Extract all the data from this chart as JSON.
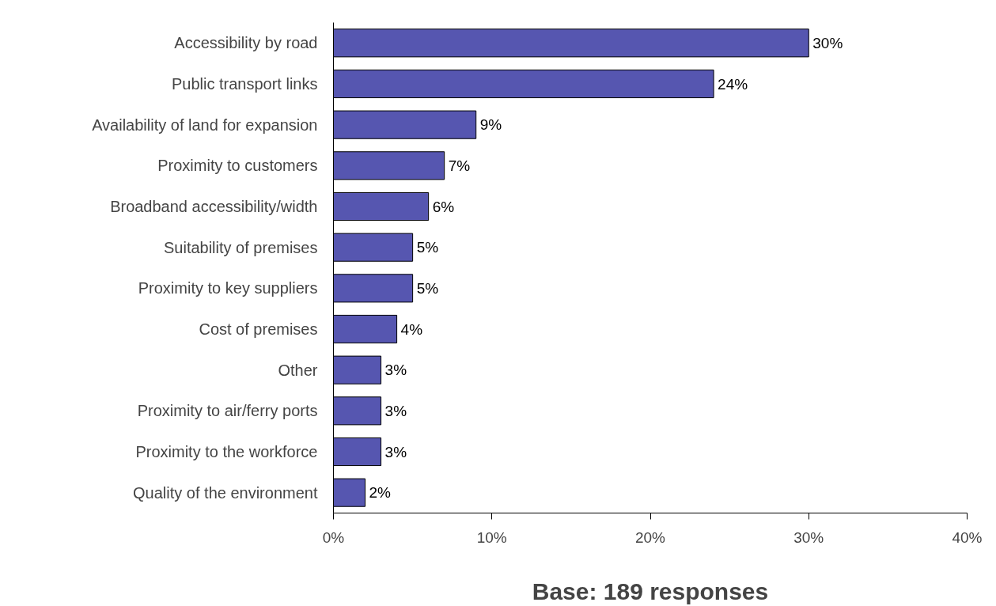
{
  "chart_data": {
    "type": "bar",
    "orientation": "horizontal",
    "xlabel": "Base: 189 responses",
    "categories": [
      "Accessibility by road",
      "Public transport links",
      "Availability of land for expansion",
      "Proximity to customers",
      "Broadband accessibility/width",
      "Suitability of premises",
      "Proximity to key suppliers",
      "Cost of premises",
      "Other",
      "Proximity to air/ferry ports",
      "Proximity to the workforce",
      "Quality of the environment"
    ],
    "values": [
      30,
      24,
      9,
      7,
      6,
      5,
      5,
      4,
      3,
      3,
      3,
      2
    ],
    "value_labels": [
      "30%",
      "24%",
      "9%",
      "7%",
      "6%",
      "5%",
      "5%",
      "4%",
      "3%",
      "3%",
      "3%",
      "2%"
    ],
    "color": "#5656b0",
    "xlim": [
      0,
      40
    ],
    "xticks": [
      {
        "value": 0,
        "label": "0%"
      },
      {
        "value": 10,
        "label": "10%"
      },
      {
        "value": 20,
        "label": "20%"
      },
      {
        "value": 30,
        "label": "30%"
      },
      {
        "value": 40,
        "label": "40%"
      }
    ]
  }
}
